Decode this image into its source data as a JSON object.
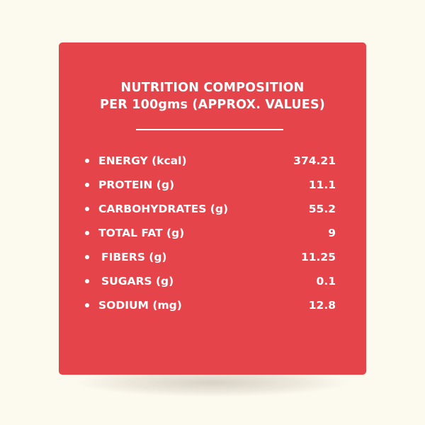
{
  "card": {
    "title_line1": "NUTRITION COMPOSITION",
    "title_line2": "PER 100gms (APPROX. VALUES)",
    "background": "#e5444b",
    "page_background": "#fcf9ee"
  },
  "nutrients": [
    {
      "label": "ENERGY (kcal)",
      "value": "374.21"
    },
    {
      "label": "PROTEIN (g)",
      "value": "11.1"
    },
    {
      "label": "CARBOHYDRATES (g)",
      "value": "55.2"
    },
    {
      "label": "TOTAL FAT (g)",
      "value": "9"
    },
    {
      "label": "FIBERS (g)",
      "value": "11.25"
    },
    {
      "label": "SUGARS (g)",
      "value": "0.1"
    },
    {
      "label": "SODIUM (mg)",
      "value": "12.8"
    }
  ]
}
